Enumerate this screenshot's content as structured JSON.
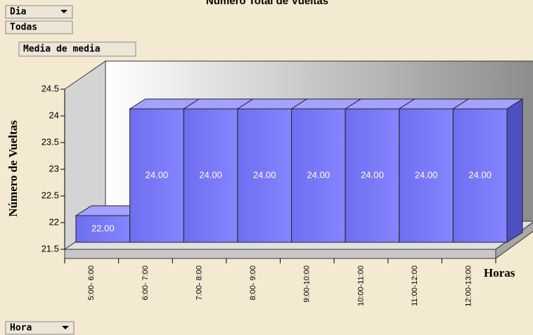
{
  "pivot_fields": {
    "page_field": "Dia",
    "page_value": "Todas",
    "data_field": "Media de media",
    "row_field": "Hora"
  },
  "chart_data": {
    "type": "bar3d",
    "title": "Número Total de Vueltas",
    "y_label": "Número de Vueltas",
    "x_label": "Horas",
    "categories": [
      "5:00- 6:00",
      "6:00- 7:00",
      "7:00- 8:00",
      "8:00- 9:00",
      "9:00-10:00",
      "10:00-11:00",
      "11:00-12:00",
      "12:00-13:00"
    ],
    "values": [
      22,
      24,
      24,
      24,
      24,
      24,
      24,
      24
    ],
    "value_labels": [
      "22.00",
      "24.00",
      "24.00",
      "24.00",
      "24.00",
      "24.00",
      "24.00",
      "24.00"
    ],
    "color": "#7b7bf5",
    "ylim": [
      21.5,
      24.5
    ],
    "yticks": [
      21.5,
      22,
      22.5,
      23,
      23.5,
      24,
      24.5
    ],
    "grid": false
  }
}
